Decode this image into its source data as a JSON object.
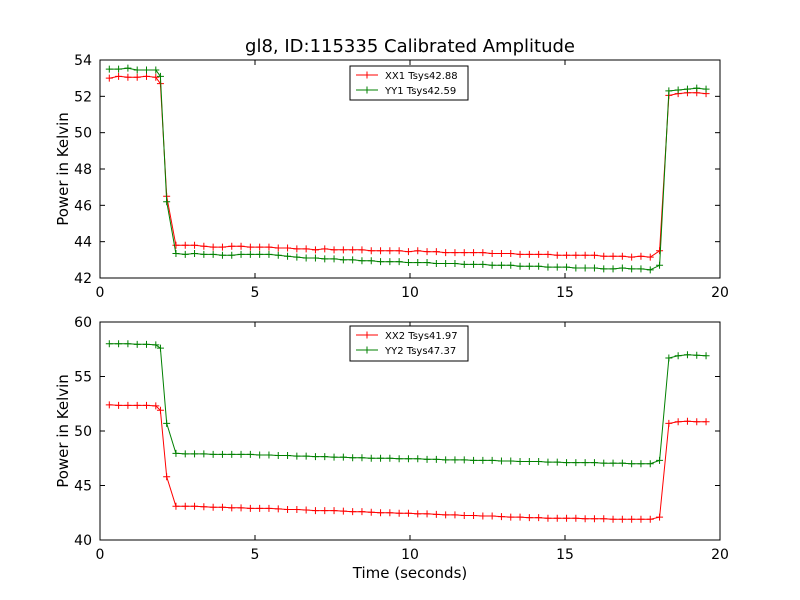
{
  "figure": {
    "title": "gl8, ID:115335 Calibrated Amplitude",
    "xlabel": "Time (seconds)",
    "colors": {
      "red": "#ff0000",
      "green": "#008000"
    }
  },
  "chart_data": [
    {
      "type": "line",
      "title": "gl8, ID:115335 Calibrated Amplitude",
      "xlabel": "",
      "ylabel": "Power in Kelvin",
      "xlim": [
        0,
        20
      ],
      "ylim": [
        42,
        54
      ],
      "xticks": [
        "0",
        "5",
        "10",
        "15",
        "20"
      ],
      "yticks": [
        "42",
        "44",
        "46",
        "48",
        "50",
        "52",
        "54"
      ],
      "grid": false,
      "legend": "top-center",
      "x": [
        0.3,
        0.6,
        0.9,
        1.2,
        1.5,
        1.8,
        1.95,
        2.15,
        2.45,
        2.75,
        3.05,
        3.35,
        3.65,
        3.95,
        4.25,
        4.55,
        4.85,
        5.15,
        5.45,
        5.75,
        6.05,
        6.35,
        6.65,
        6.95,
        7.25,
        7.55,
        7.85,
        8.15,
        8.45,
        8.75,
        9.05,
        9.35,
        9.65,
        9.95,
        10.25,
        10.55,
        10.85,
        11.15,
        11.45,
        11.75,
        12.05,
        12.35,
        12.65,
        12.95,
        13.25,
        13.55,
        13.85,
        14.15,
        14.45,
        14.75,
        15.05,
        15.35,
        15.65,
        15.95,
        16.25,
        16.55,
        16.85,
        17.15,
        17.45,
        17.75,
        18.05,
        18.35,
        18.65,
        18.95,
        19.25,
        19.55
      ],
      "series": [
        {
          "name": "XX1 Tsys42.88",
          "color": "#ff0000",
          "values": [
            53.0,
            53.1,
            53.05,
            53.05,
            53.1,
            53.05,
            52.7,
            46.5,
            43.8,
            43.8,
            43.8,
            43.75,
            43.7,
            43.7,
            43.75,
            43.75,
            43.7,
            43.7,
            43.7,
            43.65,
            43.65,
            43.6,
            43.6,
            43.55,
            43.6,
            43.55,
            43.55,
            43.55,
            43.55,
            43.5,
            43.5,
            43.5,
            43.5,
            43.45,
            43.5,
            43.45,
            43.45,
            43.4,
            43.4,
            43.4,
            43.4,
            43.4,
            43.35,
            43.35,
            43.35,
            43.3,
            43.3,
            43.3,
            43.3,
            43.25,
            43.25,
            43.25,
            43.25,
            43.25,
            43.2,
            43.2,
            43.2,
            43.15,
            43.2,
            43.15,
            43.5,
            52.05,
            52.15,
            52.2,
            52.2,
            52.15
          ]
        },
        {
          "name": "YY1 Tsys42.59",
          "color": "#008000",
          "values": [
            53.5,
            53.5,
            53.55,
            53.45,
            53.45,
            53.45,
            53.1,
            46.2,
            43.35,
            43.3,
            43.35,
            43.3,
            43.3,
            43.25,
            43.25,
            43.3,
            43.3,
            43.3,
            43.3,
            43.25,
            43.2,
            43.15,
            43.1,
            43.1,
            43.05,
            43.05,
            43.0,
            43.0,
            42.95,
            42.95,
            42.9,
            42.9,
            42.9,
            42.85,
            42.85,
            42.85,
            42.8,
            42.8,
            42.8,
            42.75,
            42.75,
            42.75,
            42.7,
            42.7,
            42.7,
            42.65,
            42.65,
            42.65,
            42.6,
            42.6,
            42.6,
            42.55,
            42.55,
            42.55,
            42.5,
            42.5,
            42.55,
            42.5,
            42.5,
            42.45,
            42.7,
            52.3,
            52.35,
            52.4,
            52.45,
            52.4
          ]
        }
      ]
    },
    {
      "type": "line",
      "title": "",
      "xlabel": "Time (seconds)",
      "ylabel": "Power in Kelvin",
      "xlim": [
        0,
        20
      ],
      "ylim": [
        40,
        60
      ],
      "xticks": [
        "0",
        "5",
        "10",
        "15",
        "20"
      ],
      "yticks": [
        "40",
        "45",
        "50",
        "55",
        "60"
      ],
      "grid": false,
      "legend": "top-center",
      "x": [
        0.3,
        0.6,
        0.9,
        1.2,
        1.5,
        1.8,
        1.95,
        2.15,
        2.45,
        2.75,
        3.05,
        3.35,
        3.65,
        3.95,
        4.25,
        4.55,
        4.85,
        5.15,
        5.45,
        5.75,
        6.05,
        6.35,
        6.65,
        6.95,
        7.25,
        7.55,
        7.85,
        8.15,
        8.45,
        8.75,
        9.05,
        9.35,
        9.65,
        9.95,
        10.25,
        10.55,
        10.85,
        11.15,
        11.45,
        11.75,
        12.05,
        12.35,
        12.65,
        12.95,
        13.25,
        13.55,
        13.85,
        14.15,
        14.45,
        14.75,
        15.05,
        15.35,
        15.65,
        15.95,
        16.25,
        16.55,
        16.85,
        17.15,
        17.45,
        17.75,
        18.05,
        18.35,
        18.65,
        18.95,
        19.25,
        19.55
      ],
      "series": [
        {
          "name": "XX2 Tsys41.97",
          "color": "#ff0000",
          "values": [
            52.4,
            52.35,
            52.35,
            52.35,
            52.35,
            52.3,
            51.9,
            45.8,
            43.1,
            43.1,
            43.1,
            43.05,
            43.0,
            43.0,
            42.95,
            42.95,
            42.9,
            42.9,
            42.9,
            42.85,
            42.8,
            42.8,
            42.75,
            42.7,
            42.7,
            42.7,
            42.65,
            42.6,
            42.6,
            42.55,
            42.5,
            42.5,
            42.45,
            42.45,
            42.4,
            42.4,
            42.35,
            42.3,
            42.3,
            42.25,
            42.25,
            42.2,
            42.2,
            42.15,
            42.1,
            42.1,
            42.05,
            42.05,
            42.0,
            42.0,
            42.0,
            42.0,
            41.95,
            41.95,
            41.95,
            41.9,
            41.9,
            41.9,
            41.9,
            41.9,
            42.1,
            50.7,
            50.85,
            50.9,
            50.85,
            50.85
          ]
        },
        {
          "name": "YY2 Tsys47.37",
          "color": "#008000",
          "values": [
            58.0,
            58.0,
            58.0,
            57.95,
            57.95,
            57.9,
            57.6,
            50.7,
            47.95,
            47.9,
            47.9,
            47.9,
            47.85,
            47.85,
            47.85,
            47.85,
            47.85,
            47.8,
            47.8,
            47.75,
            47.75,
            47.7,
            47.7,
            47.65,
            47.65,
            47.6,
            47.6,
            47.55,
            47.55,
            47.5,
            47.5,
            47.5,
            47.45,
            47.45,
            47.45,
            47.4,
            47.4,
            47.35,
            47.35,
            47.35,
            47.3,
            47.3,
            47.3,
            47.25,
            47.25,
            47.2,
            47.2,
            47.2,
            47.15,
            47.15,
            47.1,
            47.1,
            47.1,
            47.1,
            47.05,
            47.05,
            47.05,
            47.0,
            47.0,
            47.0,
            47.3,
            56.7,
            56.9,
            57.0,
            56.95,
            56.9
          ]
        }
      ]
    }
  ]
}
